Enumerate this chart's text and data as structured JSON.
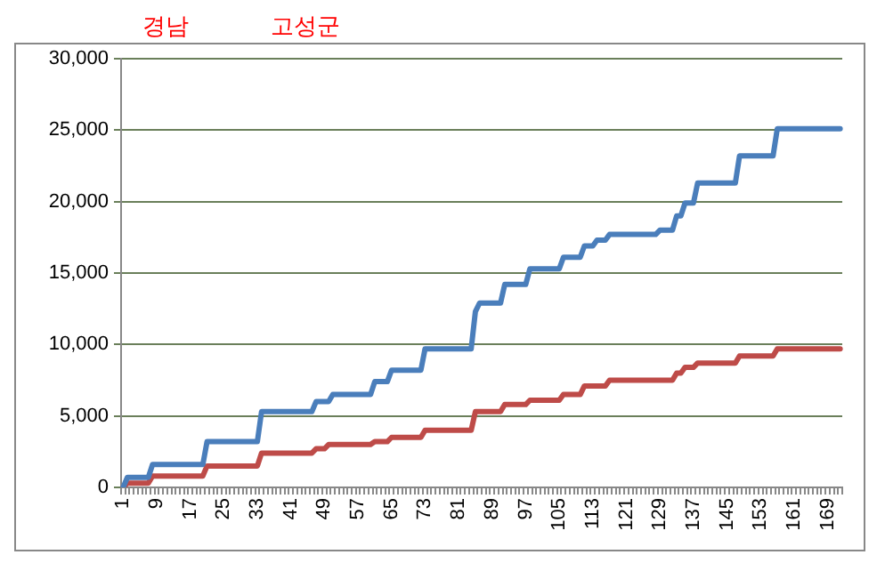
{
  "chart_data": {
    "type": "line",
    "title": "경남",
    "subtitle": "고성군",
    "categories": [
      "1",
      null,
      null,
      null,
      null,
      null,
      null,
      null,
      "9",
      null,
      null,
      null,
      null,
      null,
      null,
      null,
      "17",
      null,
      null,
      null,
      null,
      null,
      null,
      null,
      "25",
      null,
      null,
      null,
      null,
      null,
      null,
      null,
      "33",
      null,
      null,
      null,
      null,
      null,
      null,
      null,
      "41",
      null,
      null,
      null,
      null,
      null,
      null,
      null,
      "49",
      null,
      null,
      null,
      null,
      null,
      null,
      null,
      "57",
      null,
      null,
      null,
      null,
      null,
      null,
      null,
      "65",
      null,
      null,
      null,
      null,
      null,
      null,
      null,
      "73",
      null,
      null,
      null,
      null,
      null,
      null,
      null,
      "81",
      null,
      null,
      null,
      null,
      null,
      null,
      null,
      "89",
      null,
      null,
      null,
      null,
      null,
      null,
      null,
      "97",
      null,
      null,
      null,
      null,
      null,
      null,
      null,
      "105",
      null,
      null,
      null,
      null,
      null,
      null,
      null,
      "113",
      null,
      null,
      null,
      null,
      null,
      null,
      null,
      "121",
      null,
      null,
      null,
      null,
      null,
      null,
      null,
      "129",
      null,
      null,
      null,
      null,
      null,
      null,
      null,
      "137",
      null,
      null,
      null,
      null,
      null,
      null,
      null,
      "145",
      null,
      null,
      null,
      null,
      null,
      null,
      null,
      "153",
      null,
      null,
      null,
      null,
      null,
      null,
      null,
      "161",
      null,
      null,
      null,
      null,
      null,
      null,
      null,
      "169",
      null,
      null,
      null
    ],
    "series": [
      {
        "color": "#4a7ebb",
        "values": [
          0,
          700,
          700,
          700,
          700,
          700,
          700,
          1600,
          1600,
          1600,
          1600,
          1600,
          1600,
          1600,
          1600,
          1600,
          1600,
          1600,
          1600,
          1600,
          3200,
          3200,
          3200,
          3200,
          3200,
          3200,
          3200,
          3200,
          3200,
          3200,
          3200,
          3200,
          3200,
          5300,
          5300,
          5300,
          5300,
          5300,
          5300,
          5300,
          5300,
          5300,
          5300,
          5300,
          5300,
          5300,
          6000,
          6000,
          6000,
          6000,
          6500,
          6500,
          6500,
          6500,
          6500,
          6500,
          6500,
          6500,
          6500,
          6500,
          7400,
          7400,
          7400,
          7400,
          8200,
          8200,
          8200,
          8200,
          8200,
          8200,
          8200,
          8200,
          9700,
          9700,
          9700,
          9700,
          9700,
          9700,
          9700,
          9700,
          9700,
          9700,
          9700,
          9700,
          12300,
          12900,
          12900,
          12900,
          12900,
          12900,
          12900,
          14200,
          14200,
          14200,
          14200,
          14200,
          14200,
          15300,
          15300,
          15300,
          15300,
          15300,
          15300,
          15300,
          15300,
          16100,
          16100,
          16100,
          16100,
          16100,
          16900,
          16900,
          16900,
          17300,
          17300,
          17300,
          17700,
          17700,
          17700,
          17700,
          17700,
          17700,
          17700,
          17700,
          17700,
          17700,
          17700,
          17700,
          18000,
          18000,
          18000,
          18000,
          19000,
          19000,
          19900,
          19900,
          19900,
          21300,
          21300,
          21300,
          21300,
          21300,
          21300,
          21300,
          21300,
          21300,
          21300,
          23200,
          23200,
          23200,
          23200,
          23200,
          23200,
          23200,
          23200,
          23200,
          25100,
          25100,
          25100,
          25100,
          25100,
          25100,
          25100,
          25100,
          25100,
          25100,
          25100,
          25100,
          25100,
          25100,
          25100,
          25100
        ]
      },
      {
        "color": "#be4b48",
        "values": [
          0,
          300,
          300,
          300,
          300,
          300,
          300,
          800,
          800,
          800,
          800,
          800,
          800,
          800,
          800,
          800,
          800,
          800,
          800,
          800,
          1500,
          1500,
          1500,
          1500,
          1500,
          1500,
          1500,
          1500,
          1500,
          1500,
          1500,
          1500,
          1500,
          2400,
          2400,
          2400,
          2400,
          2400,
          2400,
          2400,
          2400,
          2400,
          2400,
          2400,
          2400,
          2400,
          2700,
          2700,
          2700,
          3000,
          3000,
          3000,
          3000,
          3000,
          3000,
          3000,
          3000,
          3000,
          3000,
          3000,
          3200,
          3200,
          3200,
          3200,
          3500,
          3500,
          3500,
          3500,
          3500,
          3500,
          3500,
          3500,
          4000,
          4000,
          4000,
          4000,
          4000,
          4000,
          4000,
          4000,
          4000,
          4000,
          4000,
          4000,
          5300,
          5300,
          5300,
          5300,
          5300,
          5300,
          5300,
          5800,
          5800,
          5800,
          5800,
          5800,
          5800,
          6100,
          6100,
          6100,
          6100,
          6100,
          6100,
          6100,
          6100,
          6500,
          6500,
          6500,
          6500,
          6500,
          7100,
          7100,
          7100,
          7100,
          7100,
          7100,
          7500,
          7500,
          7500,
          7500,
          7500,
          7500,
          7500,
          7500,
          7500,
          7500,
          7500,
          7500,
          7500,
          7500,
          7500,
          7500,
          8000,
          8000,
          8400,
          8400,
          8400,
          8700,
          8700,
          8700,
          8700,
          8700,
          8700,
          8700,
          8700,
          8700,
          8700,
          9200,
          9200,
          9200,
          9200,
          9200,
          9200,
          9200,
          9200,
          9200,
          9700,
          9700,
          9700,
          9700,
          9700,
          9700,
          9700,
          9700,
          9700,
          9700,
          9700,
          9700,
          9700,
          9700,
          9700,
          9700
        ]
      }
    ],
    "ylim": [
      0,
      30000
    ],
    "yticks": [
      0,
      {
        "value": 5000,
        "label": "5,000"
      },
      {
        "value": 10000,
        "label": "10,000"
      },
      {
        "value": 15000,
        "label": "15,000"
      },
      {
        "value": 20000,
        "label": "20,000"
      },
      {
        "value": 25000,
        "label": "25,000"
      },
      {
        "value": 30000,
        "label": "30,000"
      }
    ],
    "grid": "y",
    "legend": false,
    "marker": "none",
    "line_style": "solid"
  }
}
